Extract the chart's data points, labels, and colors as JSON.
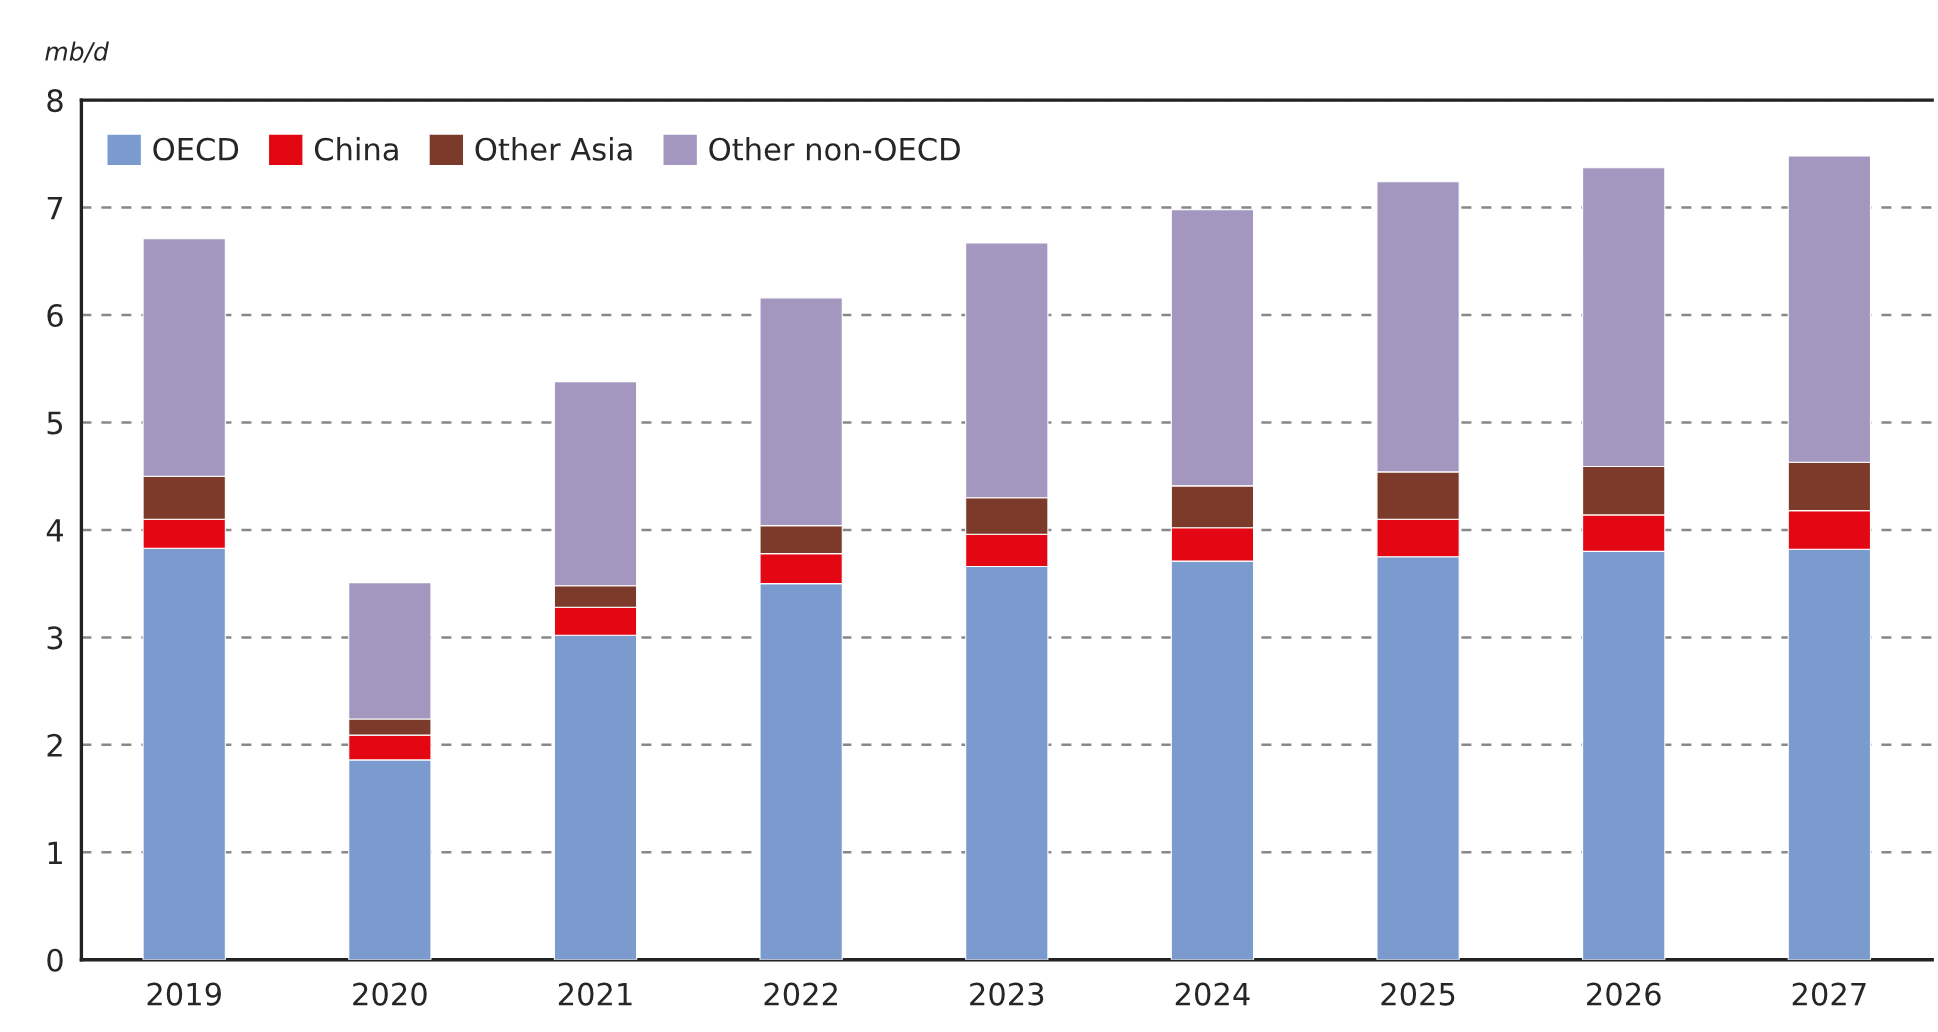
{
  "chart_data": {
    "type": "bar",
    "ylabel": "mb/d",
    "stacked": true,
    "categories": [
      "2019",
      "2020",
      "2021",
      "2022",
      "2023",
      "2024",
      "2025",
      "2026",
      "2027"
    ],
    "series": [
      {
        "name": "OECD",
        "color": "#7b9bcf",
        "values": [
          3.83,
          1.86,
          3.02,
          3.5,
          3.66,
          3.71,
          3.75,
          3.8,
          3.82
        ]
      },
      {
        "name": "China",
        "color": "#e30613",
        "values": [
          0.27,
          0.23,
          0.26,
          0.28,
          0.3,
          0.31,
          0.35,
          0.34,
          0.36
        ]
      },
      {
        "name": "Other Asia",
        "color": "#7b3a2a",
        "values": [
          0.4,
          0.15,
          0.2,
          0.26,
          0.34,
          0.39,
          0.44,
          0.45,
          0.45
        ]
      },
      {
        "name": "Other non-OECD",
        "color": "#a397bf",
        "values": [
          2.21,
          1.27,
          1.9,
          2.12,
          2.37,
          2.57,
          2.7,
          2.78,
          2.85
        ]
      }
    ],
    "ylim": [
      0,
      8
    ],
    "yticks": [
      0,
      1,
      2,
      3,
      4,
      5,
      6,
      7,
      8
    ],
    "grid": "y",
    "legend": "top left"
  }
}
